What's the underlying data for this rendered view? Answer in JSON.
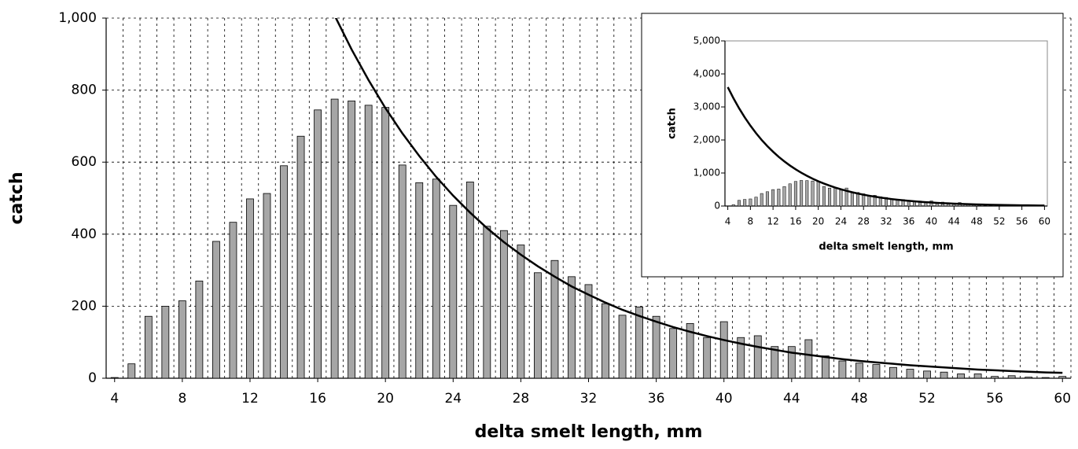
{
  "chart_data": [
    {
      "type": "bar",
      "xlabel": "delta smelt length, mm",
      "ylabel": "catch",
      "categories": [
        "4",
        null,
        null,
        null,
        "8",
        null,
        null,
        null,
        "12",
        null,
        null,
        null,
        "16",
        null,
        null,
        null,
        "20",
        null,
        null,
        null,
        "24",
        null,
        null,
        null,
        "28",
        null,
        null,
        null,
        "32",
        null,
        null,
        null,
        "36",
        null,
        null,
        null,
        "40",
        null,
        null,
        null,
        "44",
        null,
        null,
        null,
        "48",
        null,
        null,
        null,
        "52",
        null,
        null,
        null,
        "56",
        null,
        null,
        null,
        "60"
      ],
      "values": [
        2,
        40,
        172,
        200,
        215,
        270,
        380,
        433,
        498,
        513,
        590,
        672,
        745,
        775,
        770,
        758,
        752,
        592,
        543,
        553,
        480,
        545,
        422,
        410,
        370,
        293,
        327,
        282,
        260,
        207,
        175,
        198,
        172,
        138,
        152,
        113,
        157,
        113,
        118,
        88,
        88,
        107,
        62,
        48,
        42,
        38,
        30,
        25,
        20,
        17,
        12,
        12,
        5,
        7,
        3,
        2,
        5
      ],
      "fit_values": [
        3600,
        3264,
        2959,
        2683,
        2433,
        2205,
        1999,
        1813,
        1644,
        1490,
        1351,
        1225,
        1111,
        1007,
        913,
        828,
        750,
        680,
        617,
        559,
        507,
        460,
        417,
        378,
        343,
        311,
        282,
        255,
        232,
        210,
        190,
        173,
        157,
        142,
        129,
        117,
        106,
        96,
        87,
        79,
        71,
        65,
        59,
        53,
        48,
        44,
        40,
        36,
        33,
        30,
        27,
        24,
        22,
        20,
        18,
        16,
        15
      ],
      "color": "#a6a6a6",
      "line_color": "#000000",
      "ylim": [
        0,
        1000
      ],
      "yticks": [
        0,
        200,
        400,
        600,
        800,
        {
          "value": 1000,
          "label": "1,000"
        }
      ],
      "grid": true
    },
    {
      "type": "bar",
      "xlabel": "delta smelt length, mm",
      "ylabel": "catch",
      "categories": [
        "4",
        null,
        null,
        null,
        "8",
        null,
        null,
        null,
        "12",
        null,
        null,
        null,
        "16",
        null,
        null,
        null,
        "20",
        null,
        null,
        null,
        "24",
        null,
        null,
        null,
        "28",
        null,
        null,
        null,
        "32",
        null,
        null,
        null,
        "36",
        null,
        null,
        null,
        "40",
        null,
        null,
        null,
        "44",
        null,
        null,
        null,
        "48",
        null,
        null,
        null,
        "52",
        null,
        null,
        null,
        "56",
        null,
        null,
        null,
        "60"
      ],
      "values": [
        2,
        40,
        172,
        200,
        215,
        270,
        380,
        433,
        498,
        513,
        590,
        672,
        745,
        775,
        770,
        758,
        752,
        592,
        543,
        553,
        480,
        545,
        422,
        410,
        370,
        293,
        327,
        282,
        260,
        207,
        175,
        198,
        172,
        138,
        152,
        113,
        157,
        113,
        118,
        88,
        88,
        107,
        62,
        48,
        42,
        38,
        30,
        25,
        20,
        17,
        12,
        12,
        5,
        7,
        3,
        2,
        5
      ],
      "fit_values": [
        3600,
        3264,
        2959,
        2683,
        2433,
        2205,
        1999,
        1813,
        1644,
        1490,
        1351,
        1225,
        1111,
        1007,
        913,
        828,
        750,
        680,
        617,
        559,
        507,
        460,
        417,
        378,
        343,
        311,
        282,
        255,
        232,
        210,
        190,
        173,
        157,
        142,
        129,
        117,
        106,
        96,
        87,
        79,
        71,
        65,
        59,
        53,
        48,
        44,
        40,
        36,
        33,
        30,
        27,
        24,
        22,
        20,
        18,
        16,
        15
      ],
      "color": "#a6a6a6",
      "line_color": "#000000",
      "ylim": [
        0,
        5000
      ],
      "yticks": [
        0,
        {
          "value": 1000,
          "label": "1,000"
        },
        {
          "value": 2000,
          "label": "2,000"
        },
        {
          "value": 3000,
          "label": "3,000"
        },
        {
          "value": 4000,
          "label": "4,000"
        },
        {
          "value": 5000,
          "label": "5,000"
        }
      ],
      "grid": false
    }
  ]
}
